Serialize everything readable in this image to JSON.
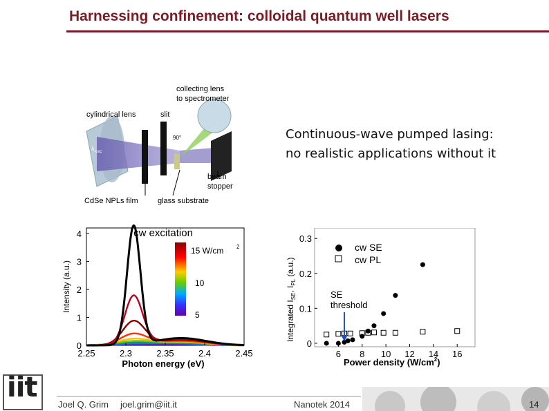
{
  "slide": {
    "title": "Harnessing confinement: colloidal quantum well lasers",
    "caption_line1": "Continuous-wave pumped lasing:",
    "caption_line2": "no realistic applications without it",
    "page_number": "14"
  },
  "footer": {
    "author": "Joel Q. Grim",
    "email": "joel.grim@iit.it",
    "event": "Nanotek 2014",
    "logo_text": "iit"
  },
  "setup_diagram": {
    "labels": {
      "collecting_lens": "collecting lens",
      "to_spectrometer": "to spectrometer",
      "cylindrical_lens": "cylindrical lens",
      "slit": "slit",
      "angle": "90°",
      "beam": "beam",
      "stopper": "stopper",
      "film": "CdSe NPLs film",
      "substrate": "glass substrate",
      "lambda": "λ",
      "lambda_sub": "exc"
    }
  },
  "chart_data": [
    {
      "type": "line",
      "title": "cw excitation",
      "xlabel": "Photon energy (eV)",
      "ylabel": "Intensity (a.u.)",
      "xlim": [
        2.25,
        2.45
      ],
      "ylim": [
        0,
        4.2
      ],
      "xticks": [
        "2.25",
        "2.3",
        "2.35",
        "2.4",
        "2.45"
      ],
      "yticks": [
        "0",
        "1",
        "2",
        "3",
        "4"
      ],
      "colorbar": {
        "label_top": "15 W/cm",
        "label_top_sup": "2",
        "label_mid": "10",
        "label_bot": "5"
      },
      "series": [
        {
          "peak": 4.25,
          "color": "#000000",
          "pl": 0.26
        },
        {
          "peak": 1.75,
          "color": "#c0001a",
          "pl": 0.24
        },
        {
          "peak": 0.85,
          "color": "#8b0000",
          "pl": 0.2
        },
        {
          "peak": 0.4,
          "color": "#ff3300",
          "pl": 0.16
        },
        {
          "peak": 0.22,
          "color": "#ffc000",
          "pl": 0.13
        },
        {
          "peak": 0.14,
          "color": "#80c000",
          "pl": 0.11
        },
        {
          "peak": 0.1,
          "color": "#00a060",
          "pl": 0.09
        },
        {
          "peak": 0.07,
          "color": "#0080ff",
          "pl": 0.07
        },
        {
          "peak": 0.05,
          "color": "#4040ff",
          "pl": 0.05
        },
        {
          "peak": 0.03,
          "color": "#8000c0",
          "pl": 0.03
        }
      ],
      "peak_center": 2.31
    },
    {
      "type": "scatter",
      "xlabel": "Power density (W/cm",
      "xlabel_sup": "2",
      "xlabel_end": ")",
      "ylabel": "Integrated I",
      "ylabel_sub1": "SE",
      "ylabel_mid": ", I",
      "ylabel_sub2": "PL",
      "ylabel_end": " (a.u.)",
      "xlim": [
        4,
        17.5
      ],
      "ylim": [
        -0.01,
        0.33
      ],
      "xticks": [
        "6",
        "8",
        "10",
        "12",
        "14",
        "16"
      ],
      "yticks": [
        "0",
        "0.1",
        "0.2",
        "0.3"
      ],
      "annotation": "SE",
      "annotation2": "threshold",
      "series": [
        {
          "name": "cw SE",
          "marker": "filled-circle",
          "x": [
            5,
            6,
            6.5,
            6.8,
            7.2,
            8,
            8.5,
            9,
            9.8,
            10.8,
            13.1
          ],
          "y": [
            0,
            0,
            0.003,
            0.007,
            0.01,
            0.02,
            0.035,
            0.05,
            0.085,
            0.137,
            0.225
          ]
        },
        {
          "name": "cw PL",
          "marker": "open-square",
          "x": [
            5,
            6,
            6.5,
            7,
            8,
            8.5,
            9,
            9.8,
            10.8,
            13.1,
            16
          ],
          "y": [
            0.025,
            0.027,
            0.028,
            0.028,
            0.029,
            0.03,
            0.031,
            0.03,
            0.03,
            0.033,
            0.035
          ]
        }
      ],
      "threshold_x": 6.5
    }
  ]
}
